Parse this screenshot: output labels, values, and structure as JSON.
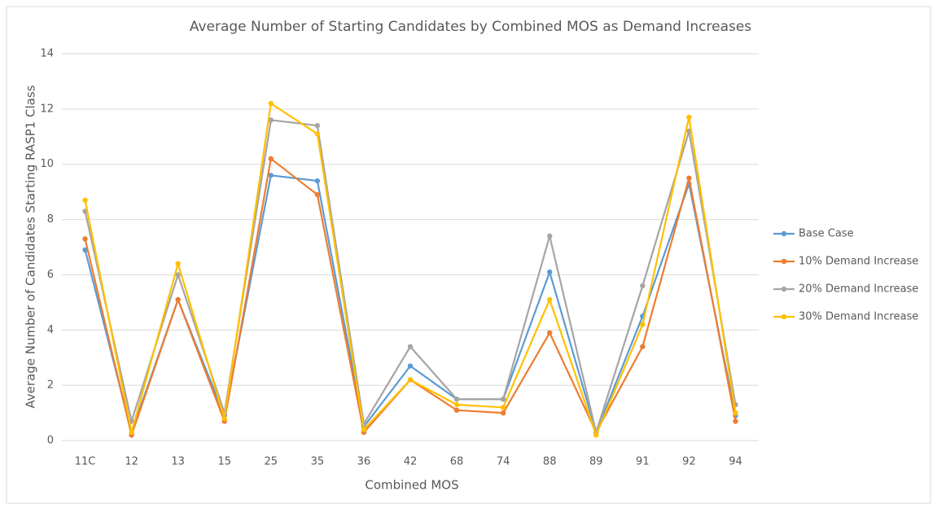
{
  "chart_data": {
    "type": "line",
    "title": "Average Number of Starting Candidates by Combined MOS as Demand Increases",
    "x_label": "Combined MOS",
    "y_label": "Average Number of Candidates Starting RASP1 Class",
    "categories": [
      "11C",
      "12",
      "13",
      "15",
      "25",
      "35",
      "36",
      "42",
      "68",
      "74",
      "88",
      "89",
      "91",
      "92",
      "94"
    ],
    "series": [
      {
        "name": "Base Case",
        "color": "#5b9bd5",
        "values": [
          6.9,
          0.3,
          5.1,
          0.9,
          9.6,
          9.4,
          0.5,
          2.7,
          1.5,
          1.5,
          6.1,
          0.3,
          4.5,
          9.3,
          0.9
        ]
      },
      {
        "name": "10% Demand Increase",
        "color": "#ed7d31",
        "values": [
          7.3,
          0.2,
          5.1,
          0.7,
          10.2,
          8.9,
          0.3,
          2.2,
          1.1,
          1.0,
          3.9,
          0.3,
          3.4,
          9.5,
          0.7
        ]
      },
      {
        "name": "20% Demand Increase",
        "color": "#a5a5a5",
        "values": [
          8.3,
          0.7,
          6.0,
          1.0,
          11.6,
          11.4,
          0.6,
          3.4,
          1.5,
          1.5,
          7.4,
          0.3,
          5.6,
          11.2,
          1.3
        ]
      },
      {
        "name": "30% Demand Increase",
        "color": "#ffc000",
        "values": [
          8.7,
          0.3,
          6.4,
          0.8,
          12.2,
          11.1,
          0.4,
          2.2,
          1.3,
          1.2,
          5.1,
          0.2,
          4.2,
          11.7,
          1.0
        ]
      }
    ],
    "ylim": [
      0,
      14
    ],
    "yticks": [
      0,
      2,
      4,
      6,
      8,
      10,
      12,
      14
    ],
    "grid": true,
    "legend": "right"
  }
}
